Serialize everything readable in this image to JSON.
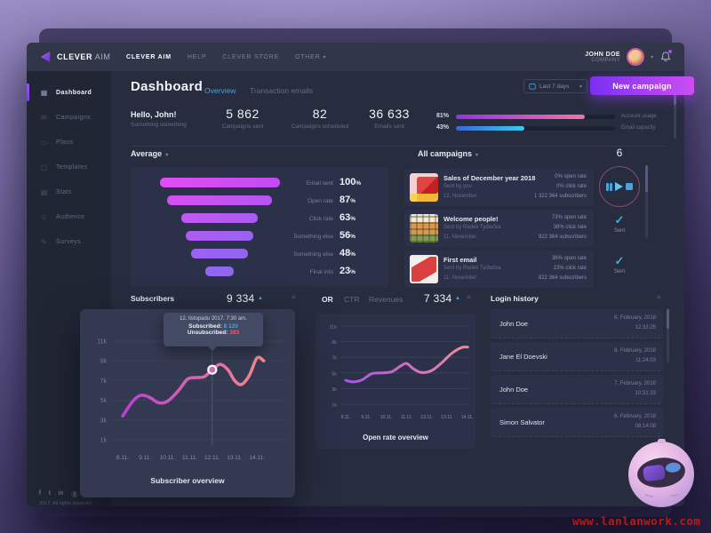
{
  "icons": {
    "chevron_down": "▾",
    "arrow_up": "▲",
    "menu": "≡",
    "check": "✓"
  },
  "topbar": {
    "logo_bold": "CLEVER",
    "logo_light": " AIM",
    "nav": [
      {
        "label": "CLEVER AIM",
        "active": true
      },
      {
        "label": "HELP"
      },
      {
        "label": "CLEVER STORE"
      },
      {
        "label": "OTHER",
        "chevron": true
      }
    ],
    "user_name": "JOHN DOE",
    "user_company": "COMPANY"
  },
  "sidebar": {
    "items": [
      {
        "label": "Dashboard",
        "icon": "▦",
        "name": "dashboard",
        "active": true
      },
      {
        "label": "Campaigns",
        "icon": "✉",
        "name": "campaigns"
      },
      {
        "label": "Plans",
        "icon": "▭",
        "name": "plans"
      },
      {
        "label": "Templates",
        "icon": "▢",
        "name": "templates"
      },
      {
        "label": "Stats",
        "icon": "▤",
        "name": "stats"
      },
      {
        "label": "Audience",
        "icon": "☺",
        "name": "audience"
      },
      {
        "label": "Surveys",
        "icon": "✎",
        "name": "surveys"
      }
    ],
    "social": [
      "f",
      "t",
      "in",
      "Ⓑ"
    ],
    "copyright": "2017. All rights reserved"
  },
  "header": {
    "title": "Dashboard",
    "tabs": [
      {
        "label": "Overview",
        "active": true
      },
      {
        "label": "Transaction emails",
        "active": false
      }
    ],
    "date_range": "Last 7 days",
    "new_campaign": "New campaign"
  },
  "stats": {
    "greeting_title": "Hello, John!",
    "greeting_sub": "Something something",
    "metrics": [
      {
        "value": "5 862",
        "label": "Campaigns sent"
      },
      {
        "value": "82",
        "label": "Campaigns scheduled"
      },
      {
        "value": "36 633",
        "label": "Emails sent"
      }
    ],
    "usage": [
      {
        "pct": "81%",
        "value": 81,
        "label": "Account usage",
        "from": "#9333ea",
        "to": "#f472a0"
      },
      {
        "pct": "43%",
        "value": 43,
        "label": "Email capacity",
        "from": "#3b66d6",
        "to": "#38cdee"
      }
    ]
  },
  "average": {
    "title": "Average",
    "pct_suffix": "%",
    "rows": [
      {
        "label": "Email sent",
        "pct": 100,
        "from": "#e24df2",
        "to": "#c04cf2"
      },
      {
        "label": "Open rate",
        "pct": 87,
        "from": "#d650f2",
        "to": "#b455f2"
      },
      {
        "label": "Click rate",
        "pct": 63,
        "from": "#c557f2",
        "to": "#a85cf2"
      },
      {
        "label": "Something else",
        "pct": 56,
        "from": "#b05bf2",
        "to": "#9a62f2"
      },
      {
        "label": "Something else",
        "pct": 48,
        "from": "#a160f2",
        "to": "#8f66f0"
      },
      {
        "label": "Final info",
        "pct": 23,
        "from": "#9865f1",
        "to": "#8a69ef"
      }
    ]
  },
  "campaigns": {
    "title": "All campaigns",
    "queue_count": "6",
    "cards": [
      {
        "title": "Sales of December year 2018",
        "sender": "Sent by you",
        "date": "12. November",
        "open": "0% open rate",
        "click": "0% click rate",
        "subs": "1 322 364 subscribers",
        "thumb": "sale-red",
        "status": "playing"
      },
      {
        "title": "Welcome people!",
        "sender": "Sent by Radek Tydlačka",
        "date": "11. November",
        "open": "73% open rate",
        "click": "38% click rate",
        "subs": "922 364 subscribers",
        "thumb": "shop-grid",
        "status": "Sent"
      },
      {
        "title": "First email",
        "sender": "Sent by Radek Tydlačka",
        "date": "11. November",
        "open": "36% open rate",
        "click": "13% click rate",
        "subs": "822 364 subscribers",
        "thumb": "sales-badge",
        "status": "Sent"
      }
    ]
  },
  "subscribers_panel": {
    "title": "Subscribers",
    "total": "9 334",
    "caption": "Subscriber overview",
    "tooltip_date": "12. listopadu 2017. 7:30 am.",
    "tooltip_sub_label": "Subscribed:",
    "tooltip_sub_value": "8 120",
    "tooltip_unsub_label": "Unsubscribed:",
    "tooltip_unsub_value": "383"
  },
  "openrate_panel": {
    "tabs": [
      {
        "label": "OR",
        "active": true
      },
      {
        "label": "CTR"
      },
      {
        "label": "Revenues"
      }
    ],
    "total": "7 334",
    "caption": "Open rate overview"
  },
  "login_history": {
    "title": "Login history",
    "entries": [
      {
        "name": "John Doe",
        "date": "8. February, 2018",
        "time": "12:33:25"
      },
      {
        "name": "Jane El Doevski",
        "date": "8. February, 2018",
        "time": "11:24:03"
      },
      {
        "name": "John Doe",
        "date": "7. February, 2018",
        "time": "10:31:33"
      },
      {
        "name": "Simon Salvator",
        "date": "6. February, 2018",
        "time": "08:14:08"
      }
    ]
  },
  "watermark": "www.lanlanwork.com",
  "chart_data": [
    {
      "type": "line",
      "title": "Subscriber overview",
      "x_ticks": [
        "8.11.",
        "9.11.",
        "10.11.",
        "11.11.",
        "12.11.",
        "13.11.",
        "14.11."
      ],
      "y_ticks": [
        "11k",
        "9k",
        "7k",
        "5k",
        "3k",
        "1k"
      ],
      "ylim_k": [
        0,
        12
      ],
      "legend_position": "none",
      "grid": true,
      "points_day_k": [
        [
          0,
          3.4
        ],
        [
          0.45,
          4.9
        ],
        [
          0.8,
          5.5
        ],
        [
          1.2,
          5.3
        ],
        [
          1.6,
          4.75
        ],
        [
          2.0,
          4.9
        ],
        [
          2.5,
          6.0
        ],
        [
          2.9,
          7.15
        ],
        [
          3.3,
          7.3
        ],
        [
          3.65,
          7.4
        ],
        [
          4.0,
          8.1
        ],
        [
          4.35,
          8.65
        ],
        [
          4.7,
          8.1
        ],
        [
          5.0,
          7.0
        ],
        [
          5.3,
          6.6
        ],
        [
          5.65,
          7.5
        ],
        [
          6.0,
          9.3
        ],
        [
          6.3,
          9.0
        ]
      ],
      "marker": {
        "x_day": 4.0,
        "y_k": 8.1,
        "date": "12. listopadu 2017. 7:30 am.",
        "subscribed": 8120,
        "unsubscribed": 383
      },
      "stroke_from": "#b93fd6",
      "stroke_to": "#f58a8a"
    },
    {
      "type": "line",
      "title": "Open rate overview",
      "x_ticks": [
        "8.11.",
        "9.11.",
        "10.11.",
        "11.11.",
        "12.11.",
        "13.11.",
        "14.11."
      ],
      "y_ticks": [
        "11k",
        "9k",
        "7k",
        "5k",
        "3k",
        "1k"
      ],
      "ylim_k": [
        0,
        12
      ],
      "legend_position": "none",
      "grid": true,
      "points_day_k": [
        [
          0,
          4.05
        ],
        [
          0.35,
          3.85
        ],
        [
          0.8,
          4.1
        ],
        [
          1.3,
          4.9
        ],
        [
          1.8,
          5.0
        ],
        [
          2.3,
          5.15
        ],
        [
          2.75,
          5.9
        ],
        [
          3.05,
          6.2
        ],
        [
          3.4,
          5.5
        ],
        [
          3.8,
          5.05
        ],
        [
          4.3,
          5.3
        ],
        [
          4.8,
          6.3
        ],
        [
          5.3,
          7.5
        ],
        [
          5.8,
          8.25
        ],
        [
          6.1,
          8.3
        ]
      ],
      "stroke_from": "#a855e8",
      "stroke_to": "#f58a9a"
    },
    {
      "type": "bar",
      "subtype": "funnel",
      "title": "Average",
      "categories": [
        "Email sent",
        "Open rate",
        "Click rate",
        "Something else",
        "Something else",
        "Final info"
      ],
      "values": [
        100,
        87,
        63,
        56,
        48,
        23
      ],
      "unit": "%"
    },
    {
      "type": "bar",
      "subtype": "horizontal-progress",
      "categories": [
        "Account usage",
        "Email capacity"
      ],
      "values": [
        81,
        43
      ],
      "unit": "%"
    }
  ]
}
